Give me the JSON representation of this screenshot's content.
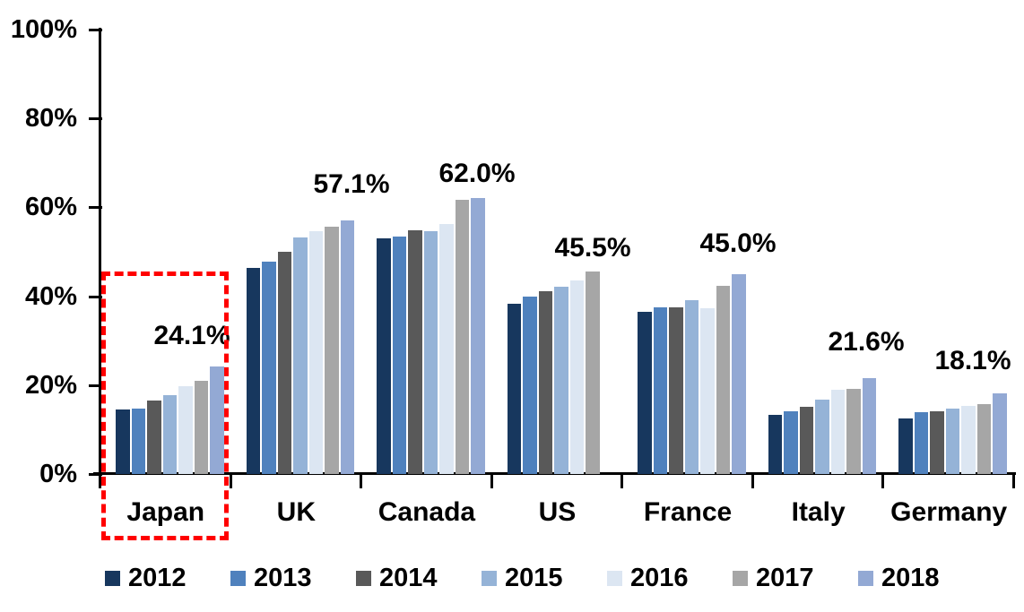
{
  "chart_data": {
    "type": "bar",
    "title": "",
    "categories": [
      "Japan",
      "UK",
      "Canada",
      "US",
      "France",
      "Italy",
      "Germany"
    ],
    "series": [
      {
        "name": "2012",
        "color": "#17375E",
        "values": [
          14.6,
          46.3,
          53.0,
          38.3,
          36.5,
          13.3,
          12.4
        ]
      },
      {
        "name": "2013",
        "color": "#4F81BD",
        "values": [
          14.8,
          47.8,
          53.4,
          40.0,
          37.6,
          14.1,
          13.9
        ]
      },
      {
        "name": "2014",
        "color": "#595959",
        "values": [
          16.5,
          50.0,
          54.8,
          41.1,
          37.5,
          15.2,
          14.2
        ]
      },
      {
        "name": "2015",
        "color": "#95B3D7",
        "values": [
          17.8,
          53.2,
          54.6,
          42.1,
          39.2,
          16.8,
          14.7
        ]
      },
      {
        "name": "2016",
        "color": "#DCE6F2",
        "values": [
          19.8,
          54.7,
          56.2,
          43.6,
          37.3,
          19.0,
          15.4
        ]
      },
      {
        "name": "2017",
        "color": "#A6A6A6",
        "values": [
          21.0,
          55.7,
          61.7,
          45.5,
          42.3,
          19.1,
          15.8
        ]
      },
      {
        "name": "2018",
        "color": "#93A9D4",
        "values": [
          24.1,
          57.1,
          62.0,
          null,
          45.0,
          21.6,
          18.1
        ]
      }
    ],
    "value_labels": [
      "24.1%",
      "57.1%",
      "62.0%",
      "45.5%",
      "45.0%",
      "21.6%",
      "18.1%"
    ],
    "y_axis": {
      "ticks": [
        "0%",
        "20%",
        "40%",
        "60%",
        "80%",
        "100%"
      ],
      "ylim": [
        0,
        100
      ]
    },
    "x_axis": {
      "label": ""
    },
    "legend": {
      "position": "bottom",
      "labels": [
        "2012",
        "2013",
        "2014",
        "2015",
        "2016",
        "2017",
        "2018"
      ]
    },
    "annotation": {
      "type": "dashed-box",
      "target_category": "Japan",
      "color": "#FF0000"
    },
    "grid": false,
    "background": "#FFFFFF",
    "text_color": "#000000"
  }
}
